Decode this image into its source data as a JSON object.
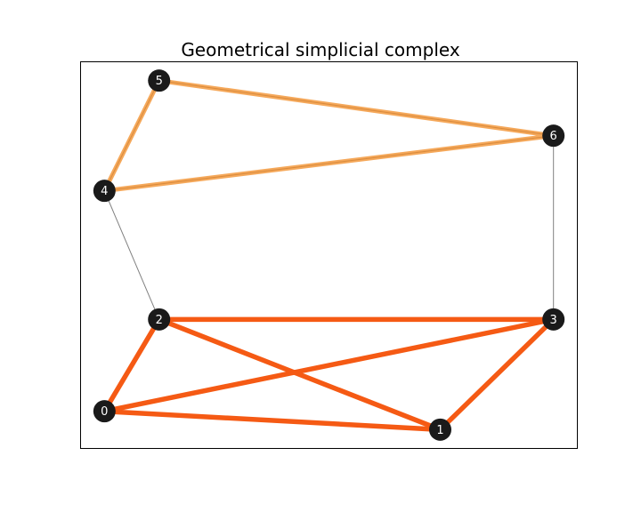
{
  "title": "Geometrical simplicial complex",
  "colors": {
    "node_fill": "#1a1a1a",
    "node_text": "#ffffff",
    "thin_edge": "#808080",
    "simplex_dark": "#f55a14",
    "simplex_light": "#f5a85a",
    "frame": "#000000"
  },
  "chart_data": {
    "type": "scatter",
    "title": "Geometrical simplicial complex",
    "nodes": [
      {
        "id": "0",
        "x": 0.0,
        "y": 0.0
      },
      {
        "id": "1",
        "x": 0.86,
        "y": -0.05
      },
      {
        "id": "2",
        "x": 0.14,
        "y": 0.25
      },
      {
        "id": "3",
        "x": 1.15,
        "y": 0.25
      },
      {
        "id": "4",
        "x": 0.0,
        "y": 0.6
      },
      {
        "id": "5",
        "x": 0.14,
        "y": 0.9
      },
      {
        "id": "6",
        "x": 1.15,
        "y": 0.75
      }
    ],
    "xlim": [
      -0.06,
      1.21
    ],
    "ylim": [
      -0.1,
      0.95
    ],
    "edges": [
      {
        "a": "4",
        "b": "2",
        "style": "thin"
      },
      {
        "a": "6",
        "b": "3",
        "style": "thin"
      },
      {
        "a": "4",
        "b": "5",
        "style": "light"
      },
      {
        "a": "5",
        "b": "6",
        "style": "light"
      },
      {
        "a": "4",
        "b": "6",
        "style": "light"
      },
      {
        "a": "0",
        "b": "1",
        "style": "dark"
      },
      {
        "a": "0",
        "b": "2",
        "style": "dark"
      },
      {
        "a": "0",
        "b": "3",
        "style": "dark"
      },
      {
        "a": "1",
        "b": "2",
        "style": "dark"
      },
      {
        "a": "1",
        "b": "3",
        "style": "dark"
      },
      {
        "a": "2",
        "b": "3",
        "style": "dark"
      }
    ],
    "grid": false,
    "axes_ticks": false
  }
}
